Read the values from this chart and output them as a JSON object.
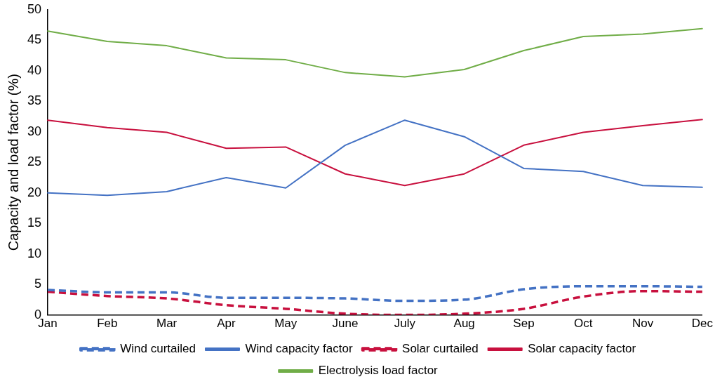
{
  "chart_data": {
    "type": "line",
    "ylabel": "Capacity and load factor (%)",
    "legend": "bottom",
    "grid": false,
    "marker": "none",
    "categories": [
      "Jan",
      "Feb",
      "Mar",
      "Apr",
      "May",
      "June",
      "July",
      "Aug",
      "Sep",
      "Oct",
      "Nov",
      "Dec"
    ],
    "ylim": [
      0,
      50
    ],
    "yticks": [
      0,
      5,
      10,
      15,
      20,
      25,
      30,
      35,
      40,
      45,
      50
    ],
    "series": [
      {
        "name": "Wind curtailed",
        "color": "#4472c4",
        "line_style": "dashed",
        "values": [
          4.1,
          3.7,
          3.7,
          2.8,
          2.8,
          2.7,
          2.3,
          2.5,
          4.2,
          4.7,
          4.7,
          4.6
        ]
      },
      {
        "name": "Wind capacity factor",
        "color": "#4472c4",
        "line_style": "solid",
        "values": [
          20.0,
          19.6,
          20.2,
          22.5,
          20.8,
          27.8,
          31.9,
          29.2,
          24.0,
          23.5,
          21.2,
          20.9
        ]
      },
      {
        "name": "Solar curtailed",
        "color": "#c8103e",
        "line_style": "dashed",
        "values": [
          3.8,
          3.1,
          2.7,
          1.6,
          1.0,
          0.2,
          0.0,
          0.2,
          1.0,
          3.0,
          3.9,
          3.8
        ]
      },
      {
        "name": "Solar capacity factor",
        "color": "#c8103e",
        "line_style": "solid",
        "values": [
          31.9,
          30.7,
          29.9,
          27.3,
          27.5,
          23.1,
          21.2,
          23.1,
          27.8,
          29.9,
          31.0,
          32.0
        ]
      },
      {
        "name": "Electrolysis load factor",
        "color": "#70ad47",
        "line_style": "solid",
        "values": [
          46.5,
          44.8,
          44.1,
          42.1,
          41.8,
          39.7,
          39.0,
          40.2,
          43.3,
          45.6,
          46.0,
          46.9
        ]
      }
    ]
  }
}
